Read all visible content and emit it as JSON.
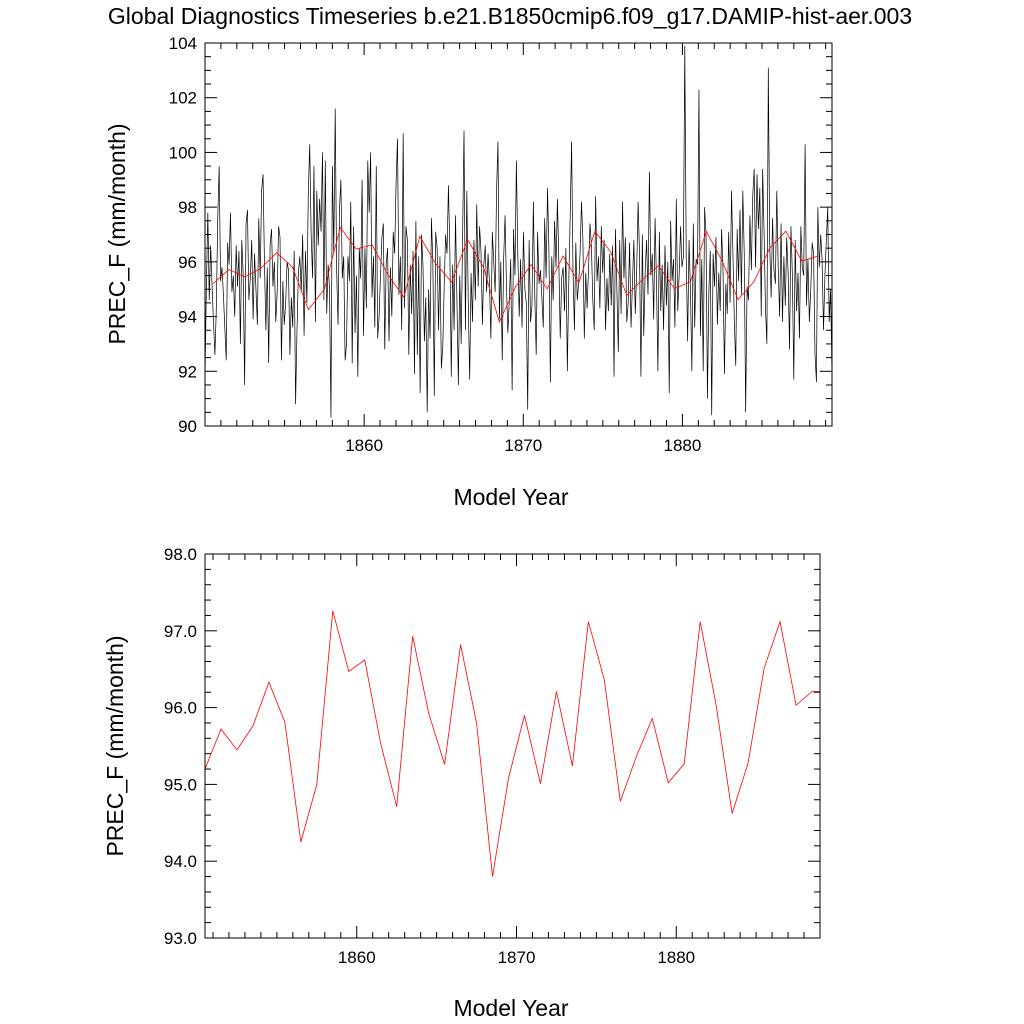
{
  "figure": {
    "title": "Global Diagnostics Timeseries b.e21.B1850cmip6.f09_g17.DAMIP-hist-aer.003"
  },
  "colors": {
    "monthly": "#000000",
    "annual": "#ff0000"
  },
  "chart_data": [
    {
      "type": "line",
      "xlabel": "Model Year",
      "ylabel": "PREC_F (mm/month)",
      "xlim": [
        1850,
        1889.4
      ],
      "ylim": [
        90,
        104
      ],
      "xticks": [
        1860,
        1870,
        1880
      ],
      "xtick_labels": [
        "1860",
        "1870",
        "1880"
      ],
      "yticks": [
        90,
        92,
        94,
        96,
        98,
        100,
        102,
        104
      ],
      "ytick_labels": [
        "90",
        "92",
        "94",
        "96",
        "98",
        "100",
        "102",
        "104"
      ],
      "series": [
        {
          "style": "monthly",
          "values": [
            91.7,
            95.2,
            97.8,
            94.6,
            96.6,
            95.1,
            93.8,
            92.6,
            94.3,
            97.6,
            99.5,
            95.3,
            95.8,
            94.8,
            93.6,
            92.4,
            96.7,
            95.9,
            97.8,
            94.9,
            95.5,
            94.0,
            96.6,
            95.1,
            96.4,
            93.0,
            96.8,
            95.5,
            91.5,
            97.4,
            97.9,
            94.6,
            95.4,
            96.8,
            93.9,
            96.3,
            95.0,
            93.7,
            97.6,
            95.4,
            98.6,
            99.2,
            96.0,
            93.5,
            95.8,
            92.3,
            96.6,
            97.2,
            95.1,
            96.0,
            93.8,
            94.9,
            97.3,
            96.9,
            92.4,
            95.3,
            93.7,
            94.5,
            96.0,
            95.7,
            92.6,
            94.7,
            93.6,
            96.4,
            90.8,
            93.5,
            95.6,
            96.2,
            94.9,
            97.0,
            93.3,
            96.4,
            94.5,
            98.6,
            100.3,
            97.0,
            95.4,
            99.5,
            93.8,
            98.6,
            96.6,
            98.3,
            97.1,
            100.0,
            94.6,
            99.7,
            94.1,
            95.9,
            95.0,
            90.3,
            99.5,
            96.3,
            101.6,
            95.7,
            93.7,
            97.9,
            99.0,
            95.4,
            96.2,
            92.4,
            93.0,
            96.2,
            95.3,
            98.2,
            92.3,
            97.3,
            93.4,
            95.5,
            91.8,
            96.5,
            95.4,
            99.0,
            93.3,
            96.5,
            94.3,
            99.7,
            97.8,
            100.0,
            94.7,
            96.2,
            93.6,
            99.5,
            93.2,
            94.0,
            95.5,
            96.9,
            97.4,
            92.8,
            95.9,
            96.5,
            93.1,
            95.8,
            94.0,
            97.1,
            96.3,
            98.9,
            100.5,
            94.8,
            96.2,
            93.5,
            100.7,
            94.3,
            97.3,
            96.8,
            92.6,
            95.9,
            94.1,
            96.4,
            91.9,
            97.5,
            92.6,
            96.2,
            91.2,
            97.0,
            95.9,
            93.1,
            94.7,
            90.5,
            95.0,
            93.2,
            97.6,
            95.9,
            91.1,
            97.1,
            96.5,
            93.5,
            96.2,
            92.1,
            92.9,
            95.1,
            97.0,
            96.3,
            98.8,
            96.4,
            91.8,
            95.9,
            93.5,
            97.7,
            94.6,
            91.5,
            95.5,
            93.0,
            96.9,
            100.8,
            93.5,
            98.6,
            94.5,
            91.7,
            95.6,
            93.8,
            96.8,
            94.6,
            98.1,
            95.1,
            97.3,
            96.4,
            93.7,
            95.9,
            96.6,
            94.9,
            96.3,
            95.2,
            93.2,
            97.1,
            96.0,
            94.9,
            98.6,
            100.4,
            93.9,
            96.0,
            92.4,
            96.1,
            97.7,
            95.1,
            93.4,
            94.6,
            96.1,
            91.3,
            97.2,
            95.5,
            99.7,
            96.3,
            94.0,
            96.1,
            93.6,
            97.1,
            95.0,
            94.5,
            90.6,
            96.8,
            93.8,
            94.4,
            98.2,
            94.8,
            92.6,
            97.1,
            95.2,
            95.7,
            94.7,
            93.6,
            97.6,
            95.4,
            98.7,
            96.4,
            91.6,
            96.2,
            94.6,
            97.5,
            95.8,
            98.3,
            96.0,
            93.2,
            95.4,
            95.8,
            94.2,
            96.5,
            92.0,
            95.2,
            97.6,
            100.4,
            95.7,
            93.5,
            96.7,
            94.6,
            95.2,
            96.3,
            98.2,
            96.8,
            93.2,
            95.6,
            94.3,
            95.8,
            97.4,
            96.6,
            94.6,
            93.5,
            98.4,
            95.3,
            96.2,
            94.3,
            97.3,
            95.6,
            96.8,
            93.5,
            95.4,
            94.2,
            96.3,
            94.4,
            96.6,
            91.8,
            97.2,
            95.0,
            92.7,
            96.8,
            94.1,
            98.2,
            95.4,
            96.9,
            93.8,
            94.5,
            96.7,
            93.6,
            95.2,
            96.8,
            94.1,
            95.7,
            98.2,
            96.3,
            91.8,
            97.0,
            93.3,
            95.6,
            96.8,
            94.8,
            99.3,
            95.5,
            96.3,
            93.9,
            97.6,
            95.2,
            92.0,
            97.1,
            94.2,
            95.9,
            93.5,
            96.6,
            94.4,
            96.0,
            91.2,
            97.5,
            95.3,
            96.1,
            93.6,
            98.3,
            94.2,
            95.5,
            97.3,
            95.8,
            96.2,
            103.9,
            96.2,
            93.1,
            96.8,
            94.9,
            92.0,
            97.4,
            93.6,
            96.1,
            95.9,
            102.3,
            93.3,
            96.1,
            92.0,
            98.0,
            97.0,
            91.0,
            94.9,
            96.4,
            90.4,
            96.3,
            95.1,
            96.9,
            93.7,
            95.6,
            94.2,
            97.2,
            95.7,
            91.9,
            95.2,
            94.1,
            97.1,
            94.5,
            98.6,
            96.3,
            93.8,
            92.2,
            97.2,
            95.3,
            97.9,
            94.8,
            98.6,
            96.3,
            90.5,
            95.1,
            94.6,
            97.7,
            95.7,
            98.4,
            99.4,
            95.8,
            99.2,
            97.2,
            98.7,
            94.0,
            99.4,
            97.1,
            94.3,
            93.0,
            103.1,
            96.6,
            94.7,
            97.6,
            95.7,
            95.2,
            98.6,
            95.8,
            94.0,
            97.4,
            93.8,
            96.2,
            94.4,
            96.9,
            95.6,
            92.8,
            97.3,
            95.5,
            91.7,
            96.8,
            94.2,
            95.6,
            93.2,
            97.3,
            95.8,
            95.5,
            100.3,
            94.4,
            96.1,
            93.8,
            95.0,
            96.7,
            96.3,
            92.6,
            91.6,
            98.0,
            95.8,
            97.0,
            96.1,
            93.5,
            95.5,
            96.8,
            98.0,
            93.8,
            95.0,
            91.8
          ]
        },
        {
          "style": "annual",
          "x": [
            1850.5,
            1851.5,
            1852.5,
            1853.5,
            1854.5,
            1855.5,
            1856.5,
            1857.5,
            1858.5,
            1859.5,
            1860.5,
            1861.5,
            1862.5,
            1863.5,
            1864.5,
            1865.5,
            1866.5,
            1867.5,
            1868.5,
            1869.5,
            1870.5,
            1871.5,
            1872.5,
            1873.5,
            1874.5,
            1875.5,
            1876.5,
            1877.5,
            1878.5,
            1879.5,
            1880.5,
            1881.5,
            1882.5,
            1883.5,
            1884.5,
            1885.5,
            1886.5,
            1887.5,
            1888.5
          ],
          "values": [
            95.2,
            95.72,
            95.45,
            95.76,
            96.33,
            95.81,
            94.25,
            95.0,
            97.26,
            96.47,
            96.62,
            95.53,
            94.71,
            96.93,
            95.93,
            95.26,
            96.82,
            95.8,
            93.8,
            95.08,
            95.9,
            95.01,
            96.21,
            95.24,
            97.12,
            96.36,
            94.78,
            95.36,
            95.86,
            95.02,
            95.27,
            97.12,
            96.03,
            94.62,
            95.28,
            96.51,
            97.12,
            96.03,
            96.21
          ]
        }
      ]
    },
    {
      "type": "line",
      "xlabel": "Model Year",
      "ylabel": "PREC_F (mm/month)",
      "xlim": [
        1850.5,
        1889
      ],
      "ylim": [
        93,
        98
      ],
      "xticks": [
        1860,
        1870,
        1880
      ],
      "xtick_labels": [
        "1860",
        "1870",
        "1880"
      ],
      "yticks": [
        93,
        94,
        95,
        96,
        97,
        98
      ],
      "ytick_labels": [
        "93.0",
        "94.0",
        "95.0",
        "96.0",
        "97.0",
        "98.0"
      ],
      "series": [
        {
          "style": "annual",
          "x": [
            1850.5,
            1851.5,
            1852.5,
            1853.5,
            1854.5,
            1855.5,
            1856.5,
            1857.5,
            1858.5,
            1859.5,
            1860.5,
            1861.5,
            1862.5,
            1863.5,
            1864.5,
            1865.5,
            1866.5,
            1867.5,
            1868.5,
            1869.5,
            1870.5,
            1871.5,
            1872.5,
            1873.5,
            1874.5,
            1875.5,
            1876.5,
            1877.5,
            1878.5,
            1879.5,
            1880.5,
            1881.5,
            1882.5,
            1883.5,
            1884.5,
            1885.5,
            1886.5,
            1887.5,
            1888.5,
            1889
          ],
          "values": [
            95.2,
            95.72,
            95.45,
            95.76,
            96.33,
            95.81,
            94.25,
            95.0,
            97.26,
            96.47,
            96.62,
            95.53,
            94.71,
            96.93,
            95.93,
            95.26,
            96.82,
            95.8,
            93.8,
            95.08,
            95.9,
            95.01,
            96.21,
            95.24,
            97.12,
            96.36,
            94.78,
            95.36,
            95.86,
            95.02,
            95.27,
            97.12,
            96.03,
            94.62,
            95.28,
            96.51,
            97.12,
            96.03,
            96.21,
            96.21
          ]
        }
      ]
    }
  ]
}
